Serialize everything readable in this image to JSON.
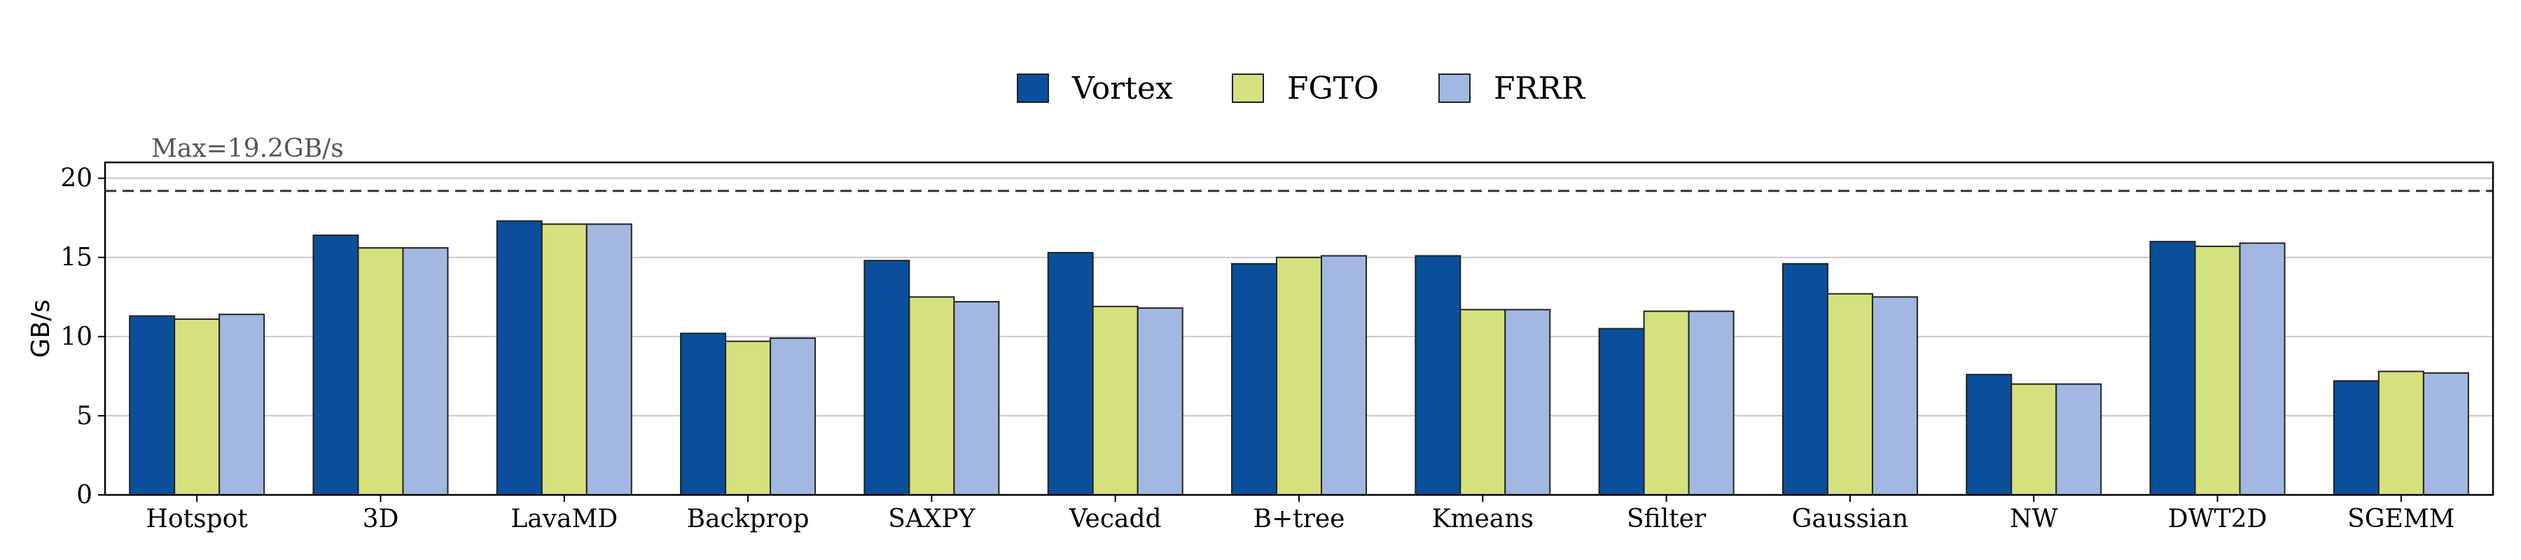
{
  "chart_data": {
    "type": "bar",
    "title": "",
    "xlabel": "",
    "ylabel": "GB/s",
    "ylim": [
      0,
      21
    ],
    "yticks": [
      "0",
      "5",
      "10",
      "15",
      "20"
    ],
    "grid": "horizontal",
    "legend_position": "top-center",
    "categories": [
      "Hotspot",
      "3D",
      "LavaMD",
      "Backprop",
      "SAXPY",
      "Vecadd",
      "B+tree",
      "Kmeans",
      "Sfilter",
      "Gaussian",
      "NW",
      "DWT2D",
      "SGEMM"
    ],
    "series": [
      {
        "name": "Vortex",
        "color": "#0b4f9c",
        "values": [
          11.3,
          16.4,
          17.3,
          10.2,
          14.8,
          15.3,
          14.6,
          15.1,
          10.5,
          14.6,
          7.6,
          16.0,
          7.2
        ]
      },
      {
        "name": "FGTO",
        "color": "#d5e17e",
        "values": [
          11.1,
          15.6,
          17.1,
          9.7,
          12.5,
          11.9,
          15.0,
          11.7,
          11.6,
          12.7,
          7.0,
          15.7,
          7.8
        ]
      },
      {
        "name": "FRRR",
        "color": "#a2b8e2",
        "values": [
          11.4,
          15.6,
          17.1,
          9.9,
          12.2,
          11.8,
          15.1,
          11.7,
          11.6,
          12.5,
          7.0,
          15.9,
          7.7
        ]
      }
    ],
    "reference_line": {
      "value": 19.2,
      "label": "Max=19.2GB/s"
    }
  }
}
